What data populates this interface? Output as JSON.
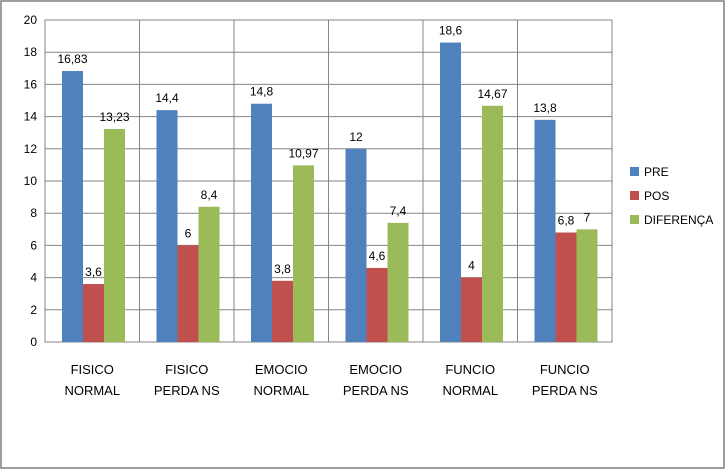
{
  "chart_data": {
    "type": "bar",
    "title": "",
    "xlabel": "",
    "ylabel": "",
    "ylim": [
      0,
      20
    ],
    "ytick_step": 2,
    "grid": true,
    "legend_position": "right",
    "categories": [
      [
        "FISICO",
        "NORMAL"
      ],
      [
        "FISICO",
        "PERDA NS"
      ],
      [
        "EMOCIO",
        "NORMAL"
      ],
      [
        "EMOCIO",
        "PERDA NS"
      ],
      [
        "FUNCIO",
        "NORMAL"
      ],
      [
        "FUNCIO",
        "PERDA NS"
      ]
    ],
    "series": [
      {
        "name": "PRE",
        "color": "#4F81BD",
        "values": [
          16.83,
          14.4,
          14.8,
          12,
          18.6,
          13.8
        ],
        "labels": [
          "16,83",
          "14,4",
          "14,8",
          "12",
          "18,6",
          "13,8"
        ]
      },
      {
        "name": "POS",
        "color": "#C0504D",
        "values": [
          3.6,
          6,
          3.8,
          4.6,
          4,
          6.8
        ],
        "labels": [
          "3,6",
          "6",
          "3,8",
          "4,6",
          "4",
          "6,8"
        ]
      },
      {
        "name": "DIFERENÇA",
        "color": "#9BBB59",
        "values": [
          13.23,
          8.4,
          10.97,
          7.4,
          14.67,
          7
        ],
        "labels": [
          "13,23",
          "8,4",
          "10,97",
          "7,4",
          "14,67",
          "7"
        ]
      }
    ]
  }
}
